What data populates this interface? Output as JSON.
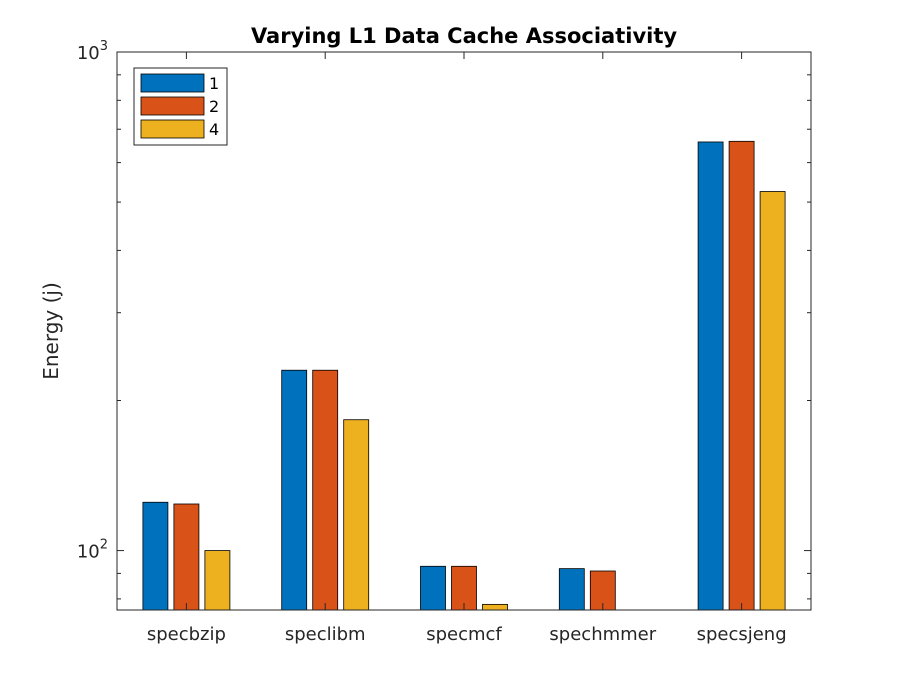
{
  "chart_data": {
    "type": "bar",
    "title": "Varying L1 Data Cache Associativity",
    "xlabel": "",
    "ylabel": "Energy (j)",
    "yscale": "log",
    "ylim": [
      76,
      1000
    ],
    "ytick_labels": [
      {
        "value": 100,
        "base": "10",
        "exp": "2"
      },
      {
        "value": 1000,
        "base": "10",
        "exp": "3"
      }
    ],
    "categories": [
      "specbzip",
      "speclibm",
      "specmcf",
      "spechmmer",
      "specsjeng"
    ],
    "series": [
      {
        "name": "1",
        "color": "#0072BD",
        "values": [
          125,
          230,
          93,
          92,
          660
        ]
      },
      {
        "name": "2",
        "color": "#D95319",
        "values": [
          124,
          230,
          93,
          91,
          662
        ]
      },
      {
        "name": "4",
        "color": "#EDB120",
        "values": [
          100,
          183,
          78,
          76,
          525
        ]
      }
    ],
    "legend": "top-left",
    "grid": false
  }
}
